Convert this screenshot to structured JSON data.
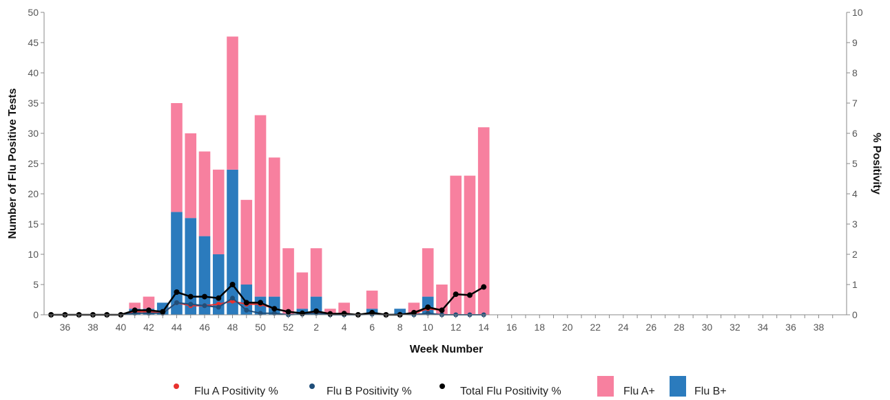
{
  "colors": {
    "flu_a_bar": "#f7809f",
    "flu_b_bar": "#2b7bbd",
    "flu_a_line": "#e8312e",
    "flu_b_line": "#1f4e79",
    "total_line": "#000000",
    "axis": "#888888"
  },
  "chart_data": {
    "type": "bar",
    "title": "",
    "xlabel": "Week Number",
    "ylabel": "Number of Flu Positive Tests",
    "y2label": "% Positivity",
    "ylim": [
      0,
      50
    ],
    "y2lim": [
      0,
      10
    ],
    "y_ticks": [
      0,
      5,
      10,
      15,
      20,
      25,
      30,
      35,
      40,
      45,
      50
    ],
    "y2_ticks": [
      0,
      1,
      2,
      3,
      4,
      5,
      6,
      7,
      8,
      9,
      10
    ],
    "grid": false,
    "legend_position": "bottom",
    "categories": [
      "35",
      "36",
      "37",
      "38",
      "39",
      "40",
      "41",
      "42",
      "43",
      "44",
      "45",
      "46",
      "47",
      "48",
      "49",
      "50",
      "51",
      "52",
      "1",
      "2",
      "3",
      "4",
      "5",
      "6",
      "7",
      "8",
      "9",
      "10",
      "11",
      "12",
      "13",
      "14",
      "15",
      "16",
      "17",
      "18",
      "19",
      "20",
      "21",
      "22",
      "23",
      "24",
      "25",
      "26",
      "27",
      "28",
      "29",
      "30",
      "31",
      "32",
      "33",
      "34",
      "35",
      "36",
      "37",
      "38",
      "39"
    ],
    "x_tick_labels": [
      "36",
      "38",
      "40",
      "42",
      "44",
      "46",
      "48",
      "50",
      "52",
      "2",
      "4",
      "6",
      "8",
      "10",
      "12",
      "14",
      "16",
      "18",
      "20",
      "22",
      "24",
      "26",
      "28",
      "30",
      "32",
      "34",
      "36",
      "38"
    ],
    "series": [
      {
        "name": "Flu A+",
        "kind": "bar",
        "axis": "left",
        "values": [
          0,
          0,
          0,
          0,
          0,
          0,
          1,
          2,
          0,
          18,
          14,
          14,
          14,
          22,
          14,
          30,
          23,
          11,
          6,
          8,
          1,
          2,
          0,
          3,
          0,
          0,
          2,
          8,
          5,
          23,
          23,
          31,
          null,
          null,
          null,
          null,
          null,
          null,
          null,
          null,
          null,
          null,
          null,
          null,
          null,
          null,
          null,
          null,
          null,
          null,
          null,
          null,
          null,
          null,
          null,
          null,
          null
        ]
      },
      {
        "name": "Flu B+",
        "kind": "bar",
        "axis": "left",
        "values": [
          0,
          0,
          0,
          0,
          0,
          0,
          1,
          1,
          2,
          17,
          16,
          13,
          10,
          24,
          5,
          3,
          3,
          0,
          1,
          3,
          0,
          0,
          0,
          1,
          0,
          1,
          0,
          3,
          0,
          0,
          0,
          0,
          null,
          null,
          null,
          null,
          null,
          null,
          null,
          null,
          null,
          null,
          null,
          null,
          null,
          null,
          null,
          null,
          null,
          null,
          null,
          null,
          null,
          null,
          null,
          null,
          null
        ]
      },
      {
        "name": "Flu A Positivity %",
        "kind": "line",
        "axis": "right",
        "values": [
          0,
          0,
          0,
          0,
          0,
          0,
          0.1,
          0.1,
          0.05,
          0.4,
          0.3,
          0.3,
          0.35,
          0.45,
          0.35,
          0.35,
          0.2,
          0.1,
          0.05,
          0.1,
          0.02,
          0.03,
          0,
          0.05,
          0,
          0,
          0.05,
          0.2,
          0.15,
          null,
          null,
          null,
          null,
          null,
          null,
          null,
          null,
          null,
          null,
          null,
          null,
          null,
          null,
          null,
          null,
          null,
          null,
          null,
          null,
          null,
          null,
          null,
          null,
          null,
          null,
          null,
          null
        ]
      },
      {
        "name": "Flu B Positivity %",
        "kind": "line",
        "axis": "right",
        "values": [
          0,
          0,
          0,
          0,
          0,
          0,
          0.05,
          0.05,
          0.05,
          0.4,
          0.35,
          0.3,
          0.25,
          0.55,
          0.15,
          0.05,
          0.05,
          0,
          0.02,
          0.05,
          0,
          0,
          0,
          0.02,
          0,
          0.02,
          0,
          0.05,
          0,
          0,
          0,
          0,
          null,
          null,
          null,
          null,
          null,
          null,
          null,
          null,
          null,
          null,
          null,
          null,
          null,
          null,
          null,
          null,
          null,
          null,
          null,
          null,
          null,
          null,
          null,
          null,
          null
        ]
      },
      {
        "name": "Total Flu Positivity %",
        "kind": "line",
        "axis": "right",
        "values": [
          0,
          0,
          0,
          0,
          0,
          0,
          0.15,
          0.15,
          0.1,
          0.75,
          0.6,
          0.6,
          0.55,
          1.0,
          0.4,
          0.4,
          0.2,
          0.1,
          0.05,
          0.12,
          0.03,
          0.04,
          0,
          0.07,
          0,
          0,
          0.07,
          0.25,
          0.15,
          0.68,
          0.65,
          0.92,
          null,
          null,
          null,
          null,
          null,
          null,
          null,
          null,
          null,
          null,
          null,
          null,
          null,
          null,
          null,
          null,
          null,
          null,
          null,
          null,
          null,
          null,
          null,
          null,
          null
        ]
      }
    ]
  },
  "legend": [
    {
      "label": "Flu A Positivity %",
      "shape": "dot",
      "color": "#e8312e"
    },
    {
      "label": "Flu B Positivity %",
      "shape": "dot",
      "color": "#1f4e79"
    },
    {
      "label": "Total Flu Positivity %",
      "shape": "dot",
      "color": "#000000"
    },
    {
      "label": "Flu A+",
      "shape": "box",
      "color": "#f7809f"
    },
    {
      "label": "Flu B+",
      "shape": "box",
      "color": "#2b7bbd"
    }
  ]
}
